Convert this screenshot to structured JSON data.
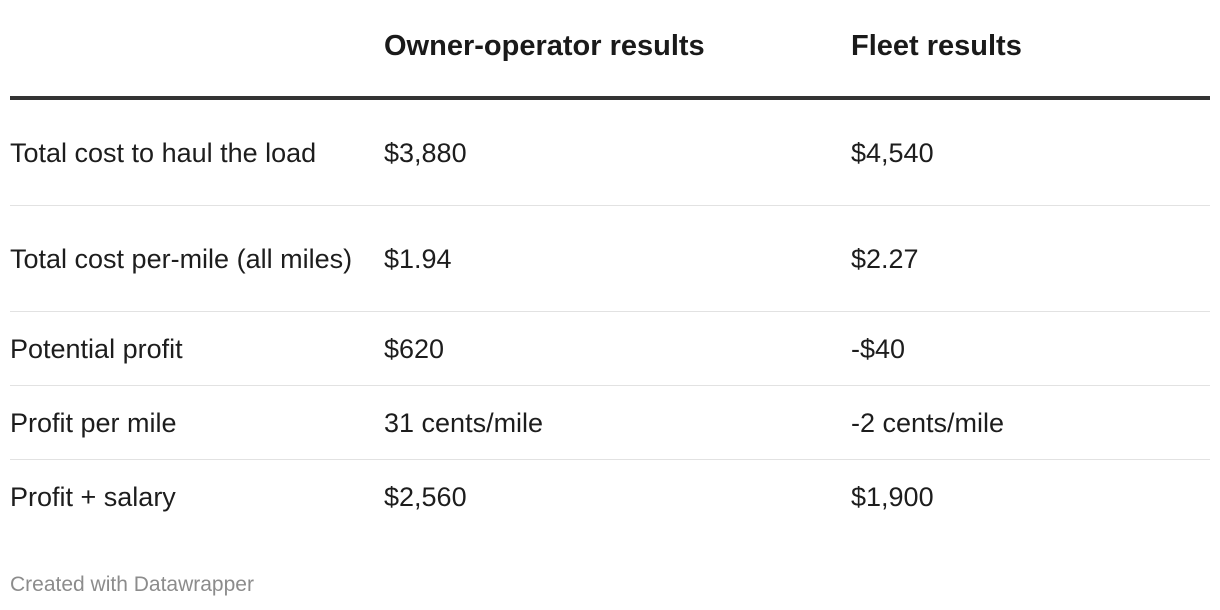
{
  "chart_data": {
    "type": "table",
    "columns": [
      "",
      "Owner-operator results",
      "Fleet results"
    ],
    "rows": [
      {
        "label": "Total cost to haul the load",
        "owner_operator": "$3,880",
        "fleet": "$4,540"
      },
      {
        "label": "Total cost per-mile (all miles)",
        "owner_operator": "$1.94",
        "fleet": "$2.27"
      },
      {
        "label": "Potential profit",
        "owner_operator": "$620",
        "fleet": "-$40"
      },
      {
        "label": "Profit per mile",
        "owner_operator": "31 cents/mile",
        "fleet": "-2 cents/mile"
      },
      {
        "label": "Profit + salary",
        "owner_operator": "$2,560",
        "fleet": "$1,900"
      }
    ]
  },
  "footer": {
    "credit": "Created with Datawrapper"
  }
}
